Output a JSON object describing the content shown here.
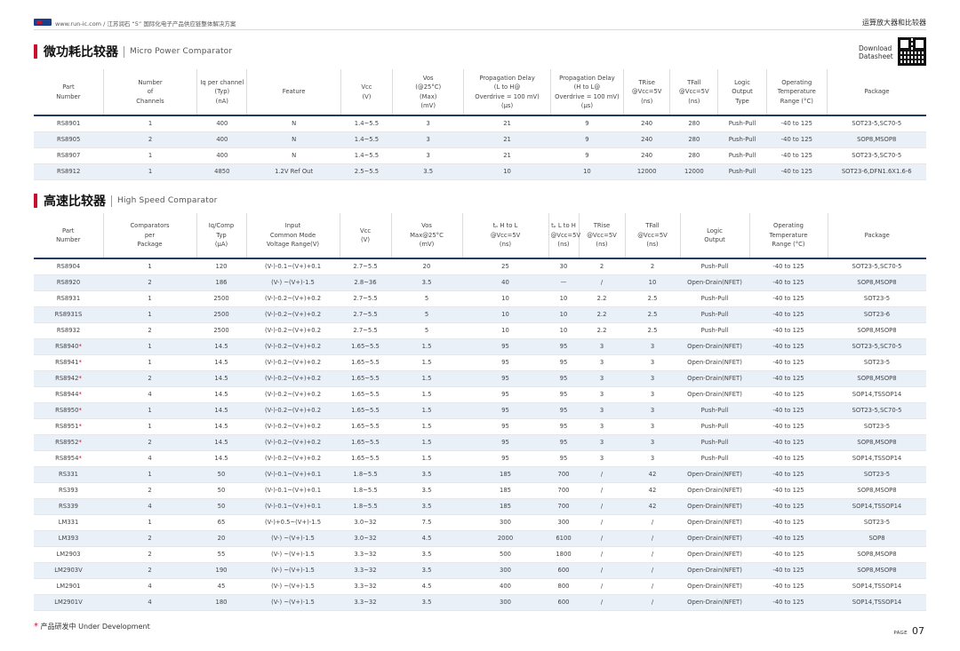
{
  "header": {
    "left_text": "www.run-ic.com / 江苏润石 “5” 国际化电子产品供应链整体解决方案",
    "right_text": "运算放大器和比较器"
  },
  "download": {
    "line1": "Download",
    "line2": "Datasheet"
  },
  "section1": {
    "title_cn": "微功耗比较器",
    "title_en": "Micro Power Comparator",
    "columns": [
      "Part\nNumber",
      "Number\nof\nChannels",
      "Iq per channel\n(Typ)\n(nA)",
      "Feature",
      "Vcc\n(V)",
      "Vos\n(@25°C)\n(Max)\n(mV)",
      "Propagation Delay\n(L to H@\nOverdrive = 100 mV)\n(μs)",
      "Propagation Delay\n(H to L@\nOverdrive = 100 mV)\n(μs)",
      "TRise\n@Vcc=5V\n(ns)",
      "TFall\n@Vcc=5V\n(ns)",
      "Logic\nOutput\nType",
      "Operating\nTemperature\nRange (°C)",
      "Package"
    ],
    "rows": [
      [
        "RS8901",
        "1",
        "400",
        "N",
        "1.4~5.5",
        "3",
        "21",
        "9",
        "240",
        "280",
        "Push-Pull",
        "-40 to 125",
        "SOT23-5,SC70-5"
      ],
      [
        "RS8905",
        "2",
        "400",
        "N",
        "1.4~5.5",
        "3",
        "21",
        "9",
        "240",
        "280",
        "Push-Pull",
        "-40 to 125",
        "SOP8,MSOP8"
      ],
      [
        "RS8907",
        "1",
        "400",
        "N",
        "1.4~5.5",
        "3",
        "21",
        "9",
        "240",
        "280",
        "Push-Pull",
        "-40 to 125",
        "SOT23-5,SC70-5"
      ],
      [
        "RS8912",
        "1",
        "4850",
        "1.2V Ref Out",
        "2.5~5.5",
        "3.5",
        "10",
        "10",
        "12000",
        "12000",
        "Push-Pull",
        "-40 to 125",
        "SOT23-6,DFN1.6X1.6-6"
      ]
    ]
  },
  "section2": {
    "title_cn": "高速比较器",
    "title_en": "High Speed Comparator",
    "columns": [
      "Part\nNumber",
      "Comparators\nper\nPackage",
      "Iq/Comp\nTyp\n(μA)",
      "Input\nCommon Mode\nVoltage Range(V)",
      "Vcc\n(V)",
      "Vos\nMax@25°C\n(mV)",
      "tₚ H to L\n@Vcc=5V\n(ns)",
      "tₚ L to H\n@Vcc=5V\n(ns)",
      "TRise\n@Vcc=5V\n(ns)",
      "TFall\n@Vcc=5V\n(ns)",
      "Logic\nOutput",
      "Operating\nTemperature\nRange (°C)",
      "Package"
    ],
    "rows": [
      [
        "RS8904",
        "",
        "1",
        "120",
        "(V-)-0.1~(V+)+0.1",
        "2.7~5.5",
        "20",
        "25",
        "30",
        "2",
        "2",
        "Push-Pull",
        "-40 to 125",
        "SOT23-5,SC70-5"
      ],
      [
        "RS8920",
        "",
        "2",
        "186",
        "(V-) ~(V+)-1.5",
        "2.8~36",
        "3.5",
        "40",
        "—",
        "/",
        "10",
        "Open-Drain(NFET)",
        "-40 to 125",
        "SOP8,MSOP8"
      ],
      [
        "RS8931",
        "",
        "1",
        "2500",
        "(V-)-0.2~(V+)+0.2",
        "2.7~5.5",
        "5",
        "10",
        "10",
        "2.2",
        "2.5",
        "Push-Pull",
        "-40 to 125",
        "SOT23-5"
      ],
      [
        "RS8931S",
        "",
        "1",
        "2500",
        "(V-)-0.2~(V+)+0.2",
        "2.7~5.5",
        "5",
        "10",
        "10",
        "2.2",
        "2.5",
        "Push-Pull",
        "-40 to 125",
        "SOT23-6"
      ],
      [
        "RS8932",
        "",
        "2",
        "2500",
        "(V-)-0.2~(V+)+0.2",
        "2.7~5.5",
        "5",
        "10",
        "10",
        "2.2",
        "2.5",
        "Push-Pull",
        "-40 to 125",
        "SOP8,MSOP8"
      ],
      [
        "RS8940",
        "*",
        "1",
        "14.5",
        "(V-)-0.2~(V+)+0.2",
        "1.65~5.5",
        "1.5",
        "95",
        "95",
        "3",
        "3",
        "Open-Drain(NFET)",
        "-40 to 125",
        "SOT23-5,SC70-5"
      ],
      [
        "RS8941",
        "*",
        "1",
        "14.5",
        "(V-)-0.2~(V+)+0.2",
        "1.65~5.5",
        "1.5",
        "95",
        "95",
        "3",
        "3",
        "Open-Drain(NFET)",
        "-40 to 125",
        "SOT23-5"
      ],
      [
        "RS8942",
        "*",
        "2",
        "14.5",
        "(V-)-0.2~(V+)+0.2",
        "1.65~5.5",
        "1.5",
        "95",
        "95",
        "3",
        "3",
        "Open-Drain(NFET)",
        "-40 to 125",
        "SOP8,MSOP8"
      ],
      [
        "RS8944",
        "*",
        "4",
        "14.5",
        "(V-)-0.2~(V+)+0.2",
        "1.65~5.5",
        "1.5",
        "95",
        "95",
        "3",
        "3",
        "Open-Drain(NFET)",
        "-40 to 125",
        "SOP14,TSSOP14"
      ],
      [
        "RS8950",
        "*",
        "1",
        "14.5",
        "(V-)-0.2~(V+)+0.2",
        "1.65~5.5",
        "1.5",
        "95",
        "95",
        "3",
        "3",
        "Push-Pull",
        "-40 to 125",
        "SOT23-5,SC70-5"
      ],
      [
        "RS8951",
        "*",
        "1",
        "14.5",
        "(V-)-0.2~(V+)+0.2",
        "1.65~5.5",
        "1.5",
        "95",
        "95",
        "3",
        "3",
        "Push-Pull",
        "-40 to 125",
        "SOT23-5"
      ],
      [
        "RS8952",
        "*",
        "2",
        "14.5",
        "(V-)-0.2~(V+)+0.2",
        "1.65~5.5",
        "1.5",
        "95",
        "95",
        "3",
        "3",
        "Push-Pull",
        "-40 to 125",
        "SOP8,MSOP8"
      ],
      [
        "RS8954",
        "*",
        "4",
        "14.5",
        "(V-)-0.2~(V+)+0.2",
        "1.65~5.5",
        "1.5",
        "95",
        "95",
        "3",
        "3",
        "Push-Pull",
        "-40 to 125",
        "SOP14,TSSOP14"
      ],
      [
        "RS331",
        "",
        "1",
        "50",
        "(V-)-0.1~(V+)+0.1",
        "1.8~5.5",
        "3.5",
        "185",
        "700",
        "/",
        "42",
        "Open-Drain(NFET)",
        "-40 to 125",
        "SOT23-5"
      ],
      [
        "RS393",
        "",
        "2",
        "50",
        "(V-)-0.1~(V+)+0.1",
        "1.8~5.5",
        "3.5",
        "185",
        "700",
        "/",
        "42",
        "Open-Drain(NFET)",
        "-40 to 125",
        "SOP8,MSOP8"
      ],
      [
        "RS339",
        "",
        "4",
        "50",
        "(V-)-0.1~(V+)+0.1",
        "1.8~5.5",
        "3.5",
        "185",
        "700",
        "/",
        "42",
        "Open-Drain(NFET)",
        "-40 to 125",
        "SOP14,TSSOP14"
      ],
      [
        "LM331",
        "",
        "1",
        "65",
        "(V-)+0.5~(V+)-1.5",
        "3.0~32",
        "7.5",
        "300",
        "300",
        "/",
        "/",
        "Open-Drain(NFET)",
        "-40 to 125",
        "SOT23-5"
      ],
      [
        "LM393",
        "",
        "2",
        "20",
        "(V-) ~(V+)-1.5",
        "3.0~32",
        "4.5",
        "2000",
        "6100",
        "/",
        "/",
        "Open-Drain(NFET)",
        "-40 to 125",
        "SOP8"
      ],
      [
        "LM2903",
        "",
        "2",
        "55",
        "(V-) ~(V+)-1.5",
        "3.3~32",
        "3.5",
        "500",
        "1800",
        "/",
        "/",
        "Open-Drain(NFET)",
        "-40 to 125",
        "SOP8,MSOP8"
      ],
      [
        "LM2903V",
        "",
        "2",
        "190",
        "(V-) ~(V+)-1.5",
        "3.3~32",
        "3.5",
        "300",
        "600",
        "/",
        "/",
        "Open-Drain(NFET)",
        "-40 to 125",
        "SOP8,MSOP8"
      ],
      [
        "LM2901",
        "",
        "4",
        "45",
        "(V-) ~(V+)-1.5",
        "3.3~32",
        "4.5",
        "400",
        "800",
        "/",
        "/",
        "Open-Drain(NFET)",
        "-40 to 125",
        "SOP14,TSSOP14"
      ],
      [
        "LM2901V",
        "",
        "4",
        "180",
        "(V-) ~(V+)-1.5",
        "3.3~32",
        "3.5",
        "300",
        "600",
        "/",
        "/",
        "Open-Drain(NFET)",
        "-40 to 125",
        "SOP14,TSSOP14"
      ]
    ]
  },
  "footnote": {
    "star": "*",
    "text": "产品研发中 Under Development"
  },
  "page": {
    "label": "PAGE",
    "number": "07"
  },
  "colors": {
    "accent": "#c8102e",
    "header_rule": "#1f3a5c",
    "stripe": "#eaf0f8"
  }
}
